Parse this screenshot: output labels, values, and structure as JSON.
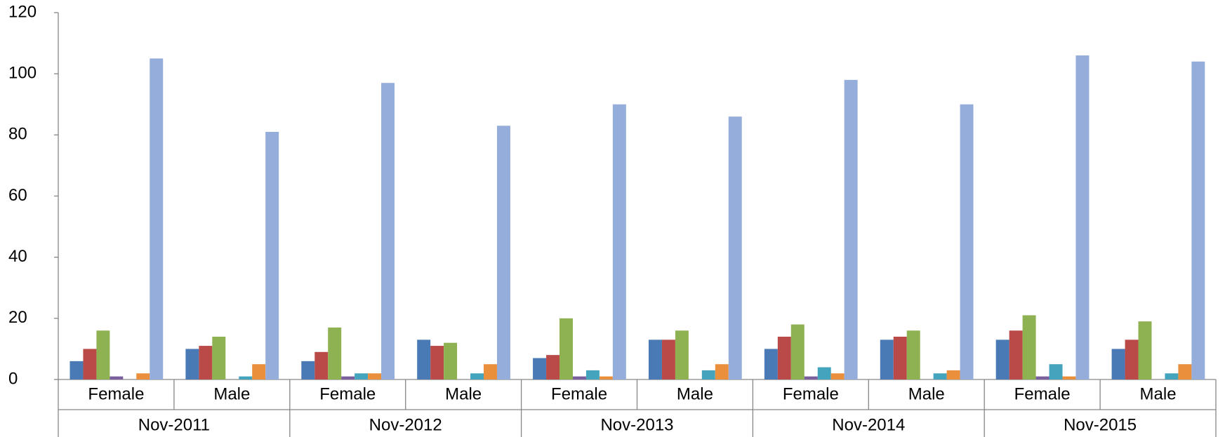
{
  "chart_data": {
    "type": "bar",
    "categories": [
      "Female",
      "Male",
      "Female",
      "Male",
      "Female",
      "Male",
      "Female",
      "Male",
      "Female",
      "Male"
    ],
    "groups": [
      "Nov-2011",
      "Nov-2012",
      "Nov-2013",
      "Nov-2014",
      "Nov-2015"
    ],
    "series": [
      {
        "color": "#4a7ab5",
        "values": [
          6,
          10,
          6,
          13,
          7,
          13,
          10,
          13,
          13,
          10
        ]
      },
      {
        "color": "#b94a48",
        "values": [
          10,
          11,
          9,
          11,
          8,
          13,
          14,
          14,
          16,
          13
        ]
      },
      {
        "color": "#8eb152",
        "values": [
          16,
          14,
          17,
          12,
          20,
          16,
          18,
          16,
          21,
          19
        ]
      },
      {
        "color": "#7b5f9e",
        "values": [
          1,
          0,
          1,
          0,
          1,
          0,
          1,
          0,
          1,
          0
        ]
      },
      {
        "color": "#44a3bd",
        "values": [
          0,
          1,
          2,
          2,
          3,
          3,
          4,
          2,
          5,
          2
        ]
      },
      {
        "color": "#ea8f3c",
        "values": [
          2,
          5,
          2,
          5,
          1,
          5,
          2,
          3,
          1,
          5
        ]
      },
      {
        "color": "#95adda",
        "values": [
          105,
          81,
          97,
          83,
          90,
          86,
          98,
          90,
          106,
          104
        ]
      }
    ],
    "ylim": [
      0,
      120
    ],
    "yticks": [
      0,
      20,
      40,
      60,
      80,
      100,
      120
    ],
    "grid": false
  }
}
